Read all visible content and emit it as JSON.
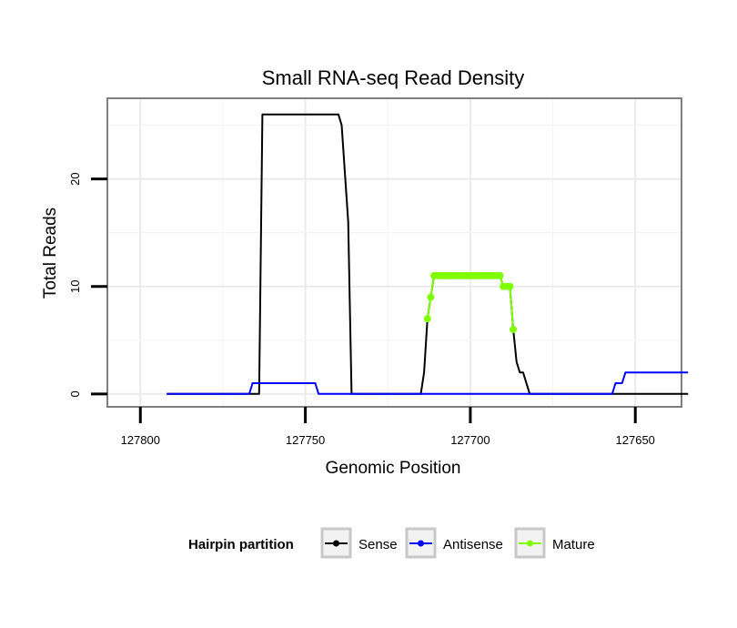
{
  "chart_data": {
    "type": "line",
    "title": "Small RNA-seq Read Density",
    "xlabel": "Genomic Position",
    "ylabel": "Total Reads",
    "xlim": [
      127810,
      127636
    ],
    "ylim": [
      -1.2,
      27.5
    ],
    "x_reversed": true,
    "x_ticks": [
      127800,
      127750,
      127700,
      127650
    ],
    "x_tick_labels": [
      "127800",
      "127750",
      "127700",
      "127650"
    ],
    "y_ticks": [
      0,
      10,
      20
    ],
    "y_tick_labels": [
      "0",
      "10",
      "20"
    ],
    "grid": true,
    "legend": {
      "title": "Hairpin partition",
      "position": "bottom",
      "entries": [
        "Sense",
        "Antisense",
        "Mature"
      ]
    },
    "series": [
      {
        "name": "Sense",
        "color": "#000000",
        "points": [
          [
            127792,
            0
          ],
          [
            127764,
            0
          ],
          [
            127763,
            26
          ],
          [
            127740,
            26
          ],
          [
            127739,
            25
          ],
          [
            127737,
            16
          ],
          [
            127736,
            0
          ],
          [
            127715,
            0
          ],
          [
            127714,
            2
          ],
          [
            127713,
            7
          ],
          [
            127712,
            9
          ],
          [
            127711,
            11
          ],
          [
            127691,
            11
          ],
          [
            127690,
            10
          ],
          [
            127688,
            10
          ],
          [
            127687,
            6
          ],
          [
            127686,
            3
          ],
          [
            127685,
            2
          ],
          [
            127684,
            2
          ],
          [
            127682,
            0
          ],
          [
            127634,
            0
          ]
        ]
      },
      {
        "name": "Antisense",
        "color": "#0000ff",
        "points": [
          [
            127792,
            0
          ],
          [
            127767,
            0
          ],
          [
            127766,
            1
          ],
          [
            127747,
            1
          ],
          [
            127746,
            0
          ],
          [
            127657,
            0
          ],
          [
            127656,
            1
          ],
          [
            127654,
            1
          ],
          [
            127653,
            2
          ],
          [
            127634,
            2
          ]
        ]
      },
      {
        "name": "Mature",
        "color": "#7fff00",
        "points": [
          [
            127713,
            7
          ],
          [
            127712,
            9
          ],
          [
            127711,
            11
          ],
          [
            127710,
            11
          ],
          [
            127709,
            11
          ],
          [
            127708,
            11
          ],
          [
            127707,
            11
          ],
          [
            127706,
            11
          ],
          [
            127705,
            11
          ],
          [
            127704,
            11
          ],
          [
            127703,
            11
          ],
          [
            127702,
            11
          ],
          [
            127701,
            11
          ],
          [
            127700,
            11
          ],
          [
            127699,
            11
          ],
          [
            127698,
            11
          ],
          [
            127697,
            11
          ],
          [
            127696,
            11
          ],
          [
            127695,
            11
          ],
          [
            127694,
            11
          ],
          [
            127693,
            11
          ],
          [
            127692,
            11
          ],
          [
            127691,
            11
          ],
          [
            127690,
            10
          ],
          [
            127689,
            10
          ],
          [
            127688,
            10
          ],
          [
            127687,
            6
          ]
        ]
      }
    ]
  }
}
